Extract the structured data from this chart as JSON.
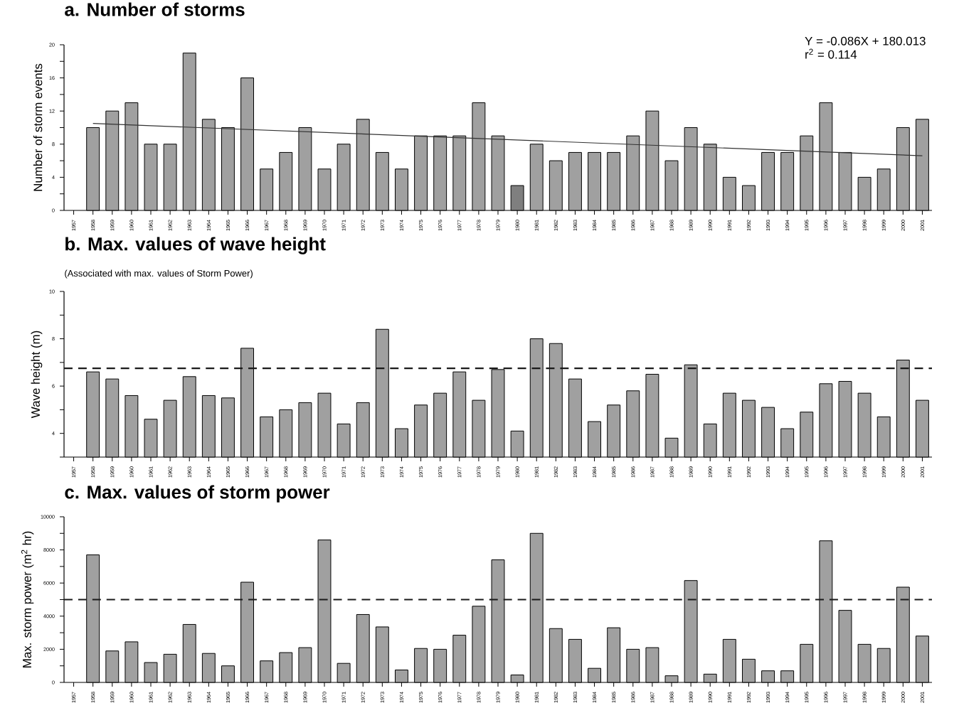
{
  "chart_data": [
    {
      "type": "bar",
      "title": "a. Number of storms",
      "ylabel": "Number of storm events",
      "annotations": [
        "Y = -0.086X + 180.013",
        "r$^{2}$ =  0.114"
      ],
      "series": [
        {
          "x": [
            1958,
            1959,
            1960,
            1961,
            1962,
            1963,
            1964,
            1965,
            1966,
            1967,
            1968,
            1969,
            1970,
            1971,
            1972,
            1973,
            1974,
            1975,
            1976,
            1977,
            1978,
            1979,
            1980,
            1981,
            1982,
            1983,
            1984,
            1985,
            1986,
            1987,
            1988,
            1989,
            1990,
            1991,
            1992,
            1993,
            1994,
            1995,
            1996,
            1997,
            1998,
            1999,
            2000,
            2001
          ],
          "values": [
            10,
            12,
            13,
            8,
            8,
            19,
            11,
            10,
            16,
            5,
            7,
            10,
            5,
            8,
            11,
            7,
            5,
            9,
            9,
            9,
            13,
            9,
            3,
            8,
            6,
            7,
            7,
            7,
            9,
            12,
            6,
            10,
            8,
            4,
            3,
            7,
            7,
            9,
            13,
            7,
            4,
            5,
            10,
            11
          ],
          "colors": [
            "#a0a0a0",
            "#a0a0a0",
            "#a0a0a0",
            "#a0a0a0",
            "#a0a0a0",
            "#a0a0a0",
            "#a0a0a0",
            "#a0a0a0",
            "#a0a0a0",
            "#a0a0a0",
            "#a0a0a0",
            "#a0a0a0",
            "#a0a0a0",
            "#a0a0a0",
            "#a0a0a0",
            "#a0a0a0",
            "#a0a0a0",
            "#a0a0a0",
            "#a0a0a0",
            "#a0a0a0",
            "#a0a0a0",
            "#a0a0a0",
            "#7f7f7f",
            "#a0a0a0",
            "#a0a0a0",
            "#a0a0a0",
            "#a0a0a0",
            "#a0a0a0",
            "#a0a0a0",
            "#a0a0a0",
            "#a0a0a0",
            "#a0a0a0",
            "#a0a0a0",
            "#a0a0a0",
            "#a0a0a0",
            "#a0a0a0",
            "#a0a0a0",
            "#a0a0a0",
            "#a0a0a0",
            "#a0a0a0",
            "#a0a0a0",
            "#a0a0a0",
            "#a0a0a0",
            "#a0a0a0"
          ]
        },
        {
          "type": "line",
          "x": [
            1958,
            2001
          ],
          "values": [
            10.5,
            6.6
          ],
          "color": "#333333"
        }
      ],
      "xlim": [
        1956.5,
        2001.5
      ],
      "ylim": [
        0,
        20
      ],
      "xticks": [
        1957,
        1958,
        1959,
        1960,
        1961,
        1962,
        1963,
        1964,
        1965,
        1966,
        1967,
        1968,
        1969,
        1970,
        1971,
        1972,
        1973,
        1974,
        1975,
        1976,
        1977,
        1978,
        1979,
        1980,
        1981,
        1982,
        1983,
        1984,
        1985,
        1986,
        1987,
        1988,
        1989,
        1990,
        1991,
        1992,
        1993,
        1994,
        1995,
        1996,
        1997,
        1998,
        1999,
        2000,
        2001
      ],
      "yticks": [
        0,
        {
          "value": 2,
          "label": null
        },
        4,
        {
          "value": 6,
          "label": null
        },
        8,
        {
          "value": 10,
          "label": null
        },
        12,
        {
          "value": 14,
          "label": null
        },
        16,
        {
          "value": 18,
          "label": null
        },
        20
      ]
    },
    {
      "type": "bar",
      "title": "b. Max. values of wave height",
      "subtitle": "(Associated with max. values of Storm Power)",
      "ylabel": "Wave height (m)",
      "series": [
        {
          "x": [
            1958,
            1959,
            1960,
            1961,
            1962,
            1963,
            1964,
            1965,
            1966,
            1967,
            1968,
            1969,
            1970,
            1971,
            1972,
            1973,
            1974,
            1975,
            1976,
            1977,
            1978,
            1979,
            1980,
            1981,
            1982,
            1983,
            1984,
            1985,
            1986,
            1987,
            1988,
            1989,
            1990,
            1991,
            1992,
            1993,
            1994,
            1995,
            1996,
            1997,
            1998,
            1999,
            2000,
            2001
          ],
          "values": [
            6.6,
            6.3,
            5.6,
            4.6,
            5.4,
            6.4,
            5.6,
            5.5,
            7.6,
            4.7,
            5.0,
            5.3,
            5.7,
            4.4,
            5.3,
            8.4,
            4.2,
            5.2,
            5.7,
            6.6,
            5.4,
            6.7,
            4.1,
            8.0,
            7.8,
            6.3,
            4.5,
            5.2,
            5.8,
            6.5,
            3.8,
            6.9,
            4.4,
            5.7,
            5.4,
            5.1,
            4.2,
            4.9,
            6.1,
            6.2,
            5.7,
            4.7,
            7.1,
            5.4
          ],
          "color": "#a0a0a0"
        }
      ],
      "ref_lines": [
        {
          "axis": "y",
          "value": 6.75,
          "line_style": "dashed",
          "color": "#1a1a1a"
        }
      ],
      "xlim": [
        1956.5,
        2001.5
      ],
      "ylim": [
        3,
        10
      ],
      "xticks": [
        1957,
        1958,
        1959,
        1960,
        1961,
        1962,
        1963,
        1964,
        1965,
        1966,
        1967,
        1968,
        1969,
        1970,
        1971,
        1972,
        1973,
        1974,
        1975,
        1976,
        1977,
        1978,
        1979,
        1980,
        1981,
        1982,
        1983,
        1984,
        1985,
        1986,
        1987,
        1988,
        1989,
        1990,
        1991,
        1992,
        1993,
        1994,
        1995,
        1996,
        1997,
        1998,
        1999,
        2000,
        2001
      ],
      "yticks": [
        {
          "value": 3,
          "label": null
        },
        4,
        {
          "value": 5,
          "label": null
        },
        6,
        {
          "value": 7,
          "label": null
        },
        8,
        {
          "value": 9,
          "label": null
        },
        10
      ]
    },
    {
      "type": "bar",
      "title": "c. Max. values of storm power",
      "ylabel": "Max. storm power (m$^{2}$ hr)",
      "series": [
        {
          "x": [
            1958,
            1959,
            1960,
            1961,
            1962,
            1963,
            1964,
            1965,
            1966,
            1967,
            1968,
            1969,
            1970,
            1971,
            1972,
            1973,
            1974,
            1975,
            1976,
            1977,
            1978,
            1979,
            1980,
            1981,
            1982,
            1983,
            1984,
            1985,
            1986,
            1987,
            1988,
            1989,
            1990,
            1991,
            1992,
            1993,
            1994,
            1995,
            1996,
            1997,
            1998,
            1999,
            2000,
            2001
          ],
          "values": [
            7700,
            1900,
            2450,
            1200,
            1700,
            3500,
            1750,
            1000,
            6050,
            1300,
            1800,
            2100,
            8600,
            1150,
            4100,
            3350,
            750,
            2050,
            2000,
            2850,
            4600,
            7400,
            450,
            9000,
            3250,
            2600,
            850,
            3300,
            2000,
            2100,
            400,
            6150,
            500,
            2600,
            1400,
            700,
            700,
            2300,
            8550,
            4350,
            2300,
            2050,
            5750,
            2800
          ],
          "color": "#a0a0a0"
        }
      ],
      "ref_lines": [
        {
          "axis": "y",
          "value": 5000,
          "line_style": "dashed",
          "color": "#1a1a1a"
        }
      ],
      "xlim": [
        1956.5,
        2001.5
      ],
      "ylim": [
        0,
        10000
      ],
      "xticks": [
        1957,
        1958,
        1959,
        1960,
        1961,
        1962,
        1963,
        1964,
        1965,
        1966,
        1967,
        1968,
        1969,
        1970,
        1971,
        1972,
        1973,
        1974,
        1975,
        1976,
        1977,
        1978,
        1979,
        1980,
        1981,
        1982,
        1983,
        1984,
        1985,
        1986,
        1987,
        1988,
        1989,
        1990,
        1991,
        1992,
        1993,
        1994,
        1995,
        1996,
        1997,
        1998,
        1999,
        2000,
        2001
      ],
      "yticks": [
        0,
        {
          "value": 1000,
          "label": null
        },
        2000,
        {
          "value": 3000,
          "label": null
        },
        4000,
        {
          "value": 5000,
          "label": null
        },
        6000,
        {
          "value": 7000,
          "label": null
        },
        8000,
        {
          "value": 9000,
          "label": null
        },
        10000
      ]
    }
  ]
}
